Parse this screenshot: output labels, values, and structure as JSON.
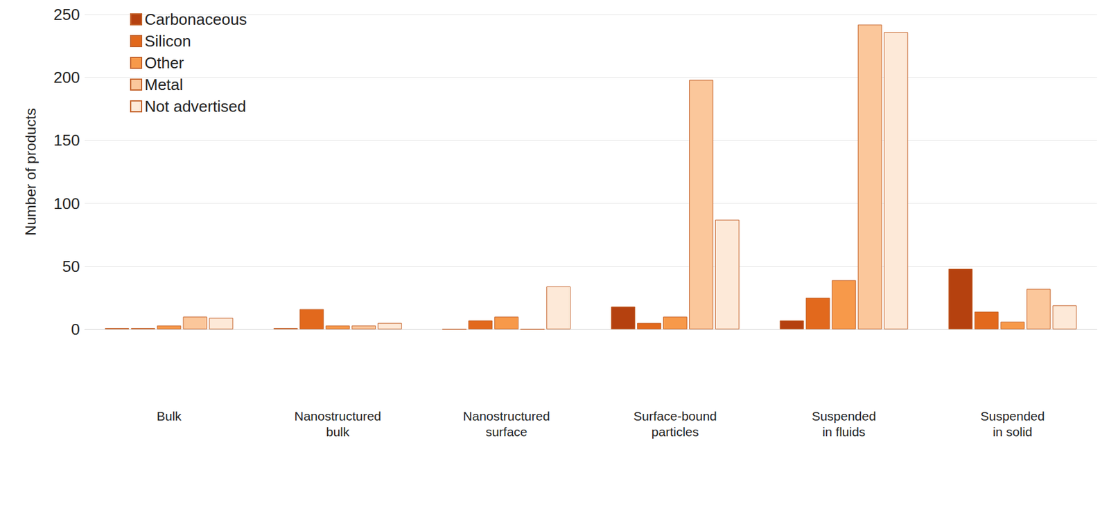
{
  "chart_data": {
    "type": "bar",
    "y_label": "Number of products",
    "categories": [
      "Bulk",
      "Nanostructured bulk",
      "Nanostructured surface",
      "Surface-bound particles",
      "Suspended in fluids",
      "Suspended in solid"
    ],
    "series": [
      {
        "name": "Carbonaceous",
        "color": "#b5410f",
        "values": [
          1,
          1,
          0,
          18,
          7,
          48
        ]
      },
      {
        "name": "Silicon",
        "color": "#e2691d",
        "values": [
          1,
          16,
          7,
          5,
          25,
          14
        ]
      },
      {
        "name": "Other",
        "color": "#f7994a",
        "values": [
          3,
          3,
          10,
          10,
          39,
          6
        ]
      },
      {
        "name": "Metal",
        "color": "#fbc79b",
        "values": [
          10,
          3,
          0,
          198,
          242,
          32
        ]
      },
      {
        "name": "Not advertised",
        "color": "#fde9d8",
        "values": [
          9,
          5,
          34,
          87,
          236,
          19
        ]
      }
    ],
    "ylim": [
      0,
      250
    ],
    "yticks": [
      0,
      50,
      100,
      150,
      200,
      250
    ],
    "grid": true,
    "legend": "upper left"
  }
}
